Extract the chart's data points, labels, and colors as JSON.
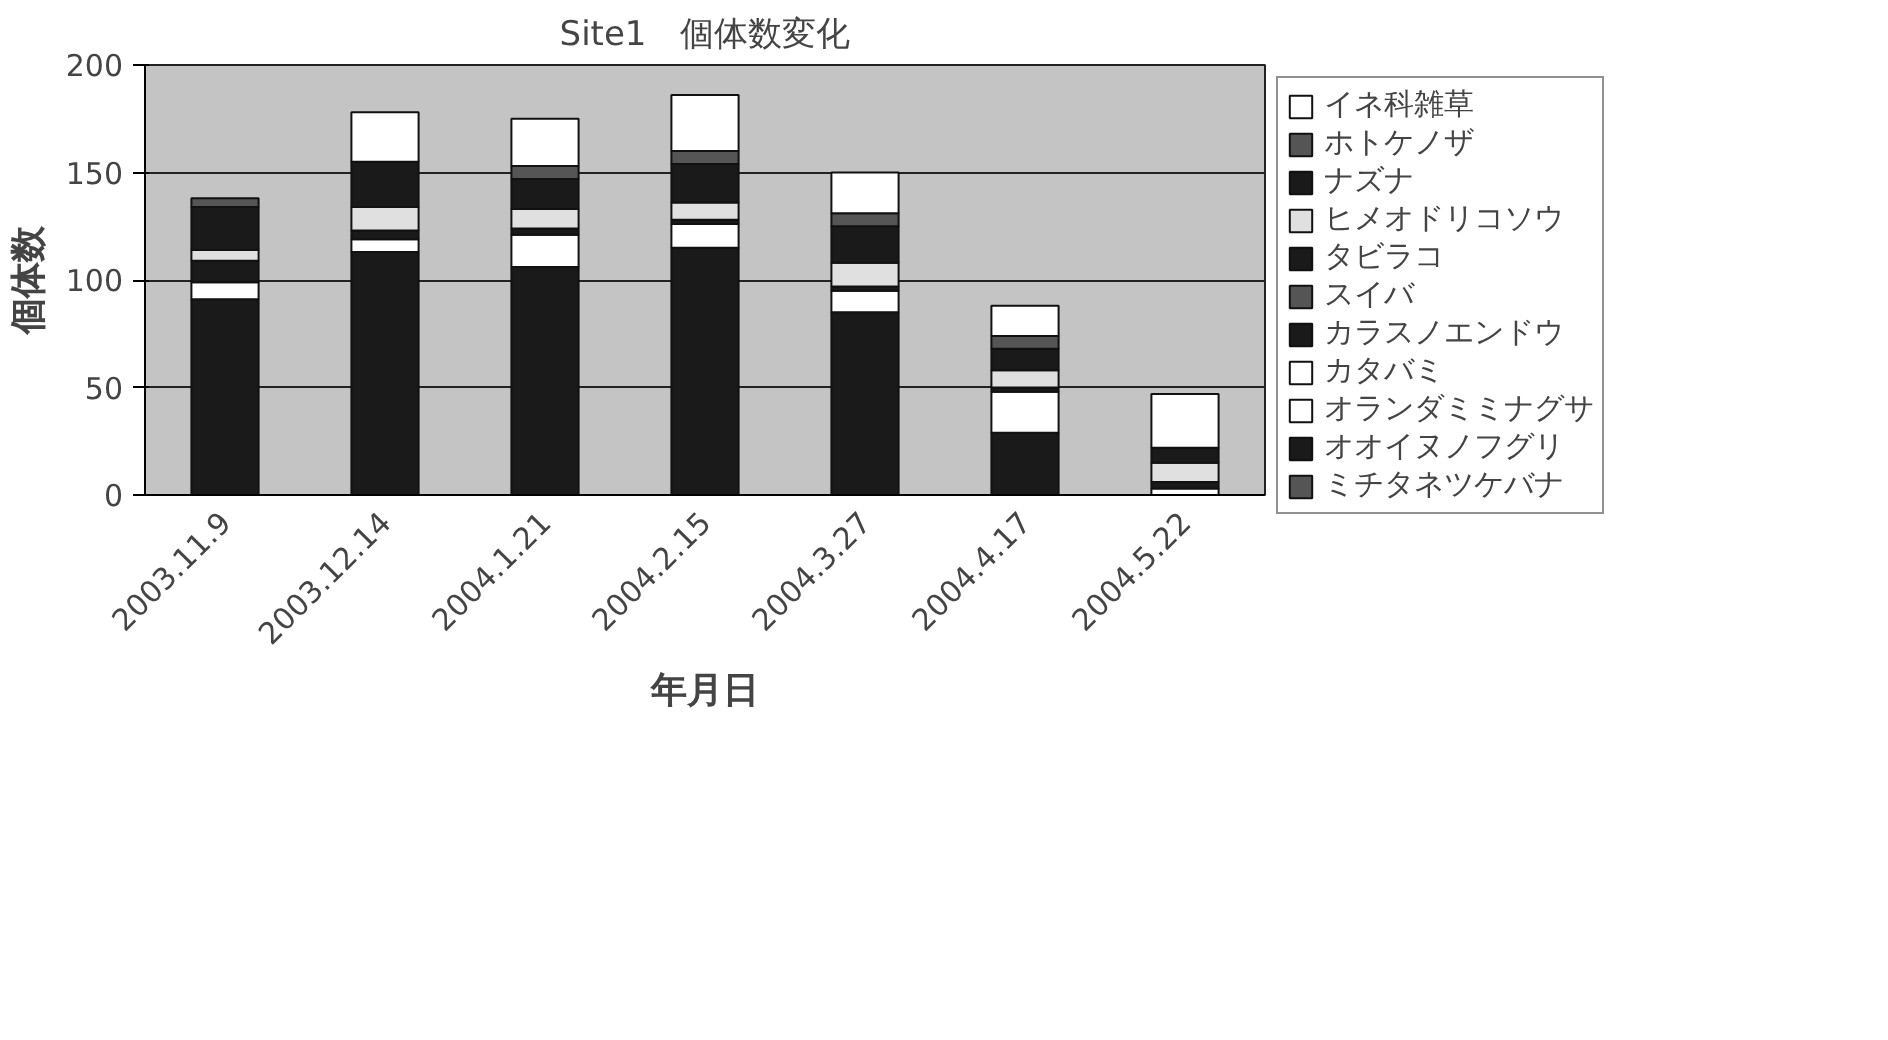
{
  "chart_data": {
    "type": "bar",
    "stacked": true,
    "title": "Site1　個体数変化",
    "xlabel": "年月日",
    "ylabel": "個体数",
    "categories": [
      "2003.11.9",
      "2003.12.14",
      "2004.1.21",
      "2004.2.15",
      "2004.3.27",
      "2004.4.17",
      "2004.5.22"
    ],
    "ylim": [
      0,
      200
    ],
    "yticks": [
      0,
      50,
      100,
      150,
      200
    ],
    "grid": "y",
    "legend": "right",
    "series": [
      {
        "name": "ミチタネツケバナ",
        "color": "#555555",
        "values": [
          0,
          0,
          0,
          0,
          0,
          0,
          0
        ]
      },
      {
        "name": "オオイヌノフグリ",
        "color": "#1a1a1a",
        "values": [
          91,
          113,
          106,
          115,
          85,
          29,
          null
        ]
      },
      {
        "name": "オランダミミナグサ",
        "color": "#ffffff",
        "values": [
          8,
          6,
          15,
          11,
          10,
          19,
          3
        ]
      },
      {
        "name": "カタバミ",
        "color": "#ffffff",
        "values": [
          0,
          0,
          0,
          0,
          0,
          0,
          0
        ]
      },
      {
        "name": "カラスノエンドウ",
        "color": "#1a1a1a",
        "values": [
          10,
          4,
          3,
          2,
          2,
          2,
          3
        ]
      },
      {
        "name": "スイバ",
        "color": "#555555",
        "values": [
          0,
          0,
          0,
          0,
          0,
          0,
          0
        ]
      },
      {
        "name": "タビラコ",
        "color": "#1a1a1a",
        "values": [
          0,
          0,
          0,
          0,
          0,
          0,
          0
        ]
      },
      {
        "name": "ヒメオドリコソウ",
        "color": "#e0e0e0",
        "values": [
          5,
          11,
          9,
          8,
          11,
          8,
          9
        ]
      },
      {
        "name": "ナズナ",
        "color": "#1a1a1a",
        "values": [
          20,
          21,
          14,
          18,
          17,
          10,
          7
        ]
      },
      {
        "name": "ホトケノザ",
        "color": "#555555",
        "values": [
          4,
          0,
          6,
          6,
          6,
          6,
          0
        ]
      },
      {
        "name": "イネ科雑草",
        "color": "#ffffff",
        "values": [
          0,
          23,
          22,
          26,
          19,
          14,
          25
        ]
      }
    ]
  }
}
